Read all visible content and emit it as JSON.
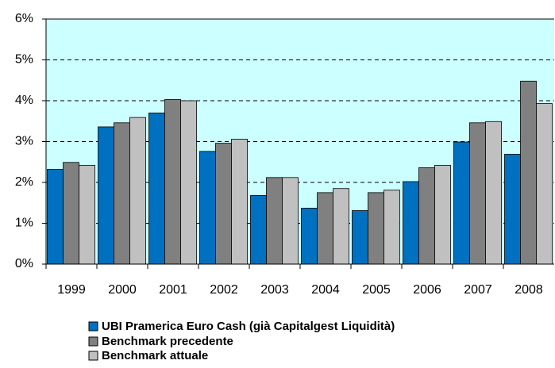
{
  "chart_data": {
    "type": "bar",
    "categories": [
      "1999",
      "2000",
      "2001",
      "2002",
      "2003",
      "2004",
      "2005",
      "2006",
      "2007",
      "2008"
    ],
    "series": [
      {
        "name": "UBI Pramerica Euro Cash (già Capitalgest Liquidità)",
        "color": "#0070c0",
        "values": [
          2.32,
          3.36,
          3.7,
          2.76,
          1.68,
          1.37,
          1.31,
          2.02,
          2.99,
          2.69
        ]
      },
      {
        "name": "Benchmark precedente",
        "color": "#808080",
        "values": [
          2.49,
          3.46,
          4.03,
          2.96,
          2.12,
          1.75,
          1.75,
          2.36,
          3.46,
          4.48
        ]
      },
      {
        "name": "Benchmark attuale",
        "color": "#c0c0c0",
        "values": [
          2.42,
          3.59,
          4.0,
          3.06,
          2.12,
          1.85,
          1.81,
          2.42,
          3.49,
          3.93
        ]
      }
    ],
    "ylim": [
      0,
      6
    ],
    "yticks": [
      {
        "value": 0,
        "label": "0%"
      },
      {
        "value": 1,
        "label": "1%"
      },
      {
        "value": 2,
        "label": "2%"
      },
      {
        "value": 3,
        "label": "3%"
      },
      {
        "value": 4,
        "label": "4%"
      },
      {
        "value": 5,
        "label": "5%"
      },
      {
        "value": 6,
        "label": "6%"
      }
    ],
    "grid": true
  }
}
